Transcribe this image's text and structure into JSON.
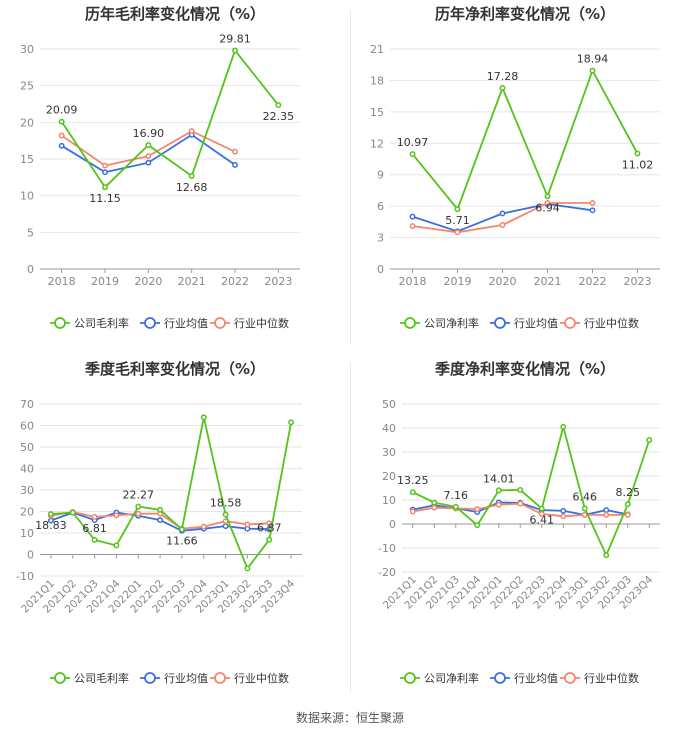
{
  "source_label": "数据来源：恒生聚源",
  "colors": {
    "company": "#52c41a",
    "avg": "#3a6fdc",
    "median": "#f4866b",
    "grid": "#e6e6e6",
    "axis_text": "#888888"
  },
  "chart_data": [
    {
      "id": "annual-gross",
      "type": "line",
      "title": "历年毛利率变化情况（%）",
      "categories": [
        "2018",
        "2019",
        "2020",
        "2021",
        "2022",
        "2023"
      ],
      "ylim": [
        0,
        30
      ],
      "yticks": [
        0,
        5,
        10,
        15,
        20,
        25,
        30
      ],
      "rotate_xlabels": false,
      "series": [
        {
          "name": "公司毛利率",
          "role": "company",
          "values": [
            20.09,
            11.15,
            16.9,
            12.68,
            29.81,
            22.35
          ],
          "labels": [
            "20.09",
            "11.15",
            "16.90",
            "12.68",
            "29.81",
            "22.35"
          ]
        },
        {
          "name": "行业均值",
          "role": "avg",
          "values": [
            16.8,
            13.2,
            14.5,
            18.3,
            14.2,
            null
          ]
        },
        {
          "name": "行业中位数",
          "role": "median",
          "values": [
            18.2,
            14.1,
            15.4,
            18.8,
            16.0,
            null
          ]
        }
      ]
    },
    {
      "id": "annual-net",
      "type": "line",
      "title": "历年净利率变化情况（%）",
      "categories": [
        "2018",
        "2019",
        "2020",
        "2021",
        "2022",
        "2023"
      ],
      "ylim": [
        0,
        21
      ],
      "yticks": [
        0,
        3,
        6,
        9,
        12,
        15,
        18,
        21
      ],
      "rotate_xlabels": false,
      "series": [
        {
          "name": "公司净利率",
          "role": "company",
          "values": [
            10.97,
            5.71,
            17.28,
            6.94,
            18.94,
            11.02
          ],
          "labels": [
            "10.97",
            "5.71",
            "17.28",
            "6.94",
            "18.94",
            "11.02"
          ]
        },
        {
          "name": "行业均值",
          "role": "avg",
          "values": [
            5.0,
            3.6,
            5.3,
            6.2,
            5.6,
            null
          ]
        },
        {
          "name": "行业中位数",
          "role": "median",
          "values": [
            4.1,
            3.5,
            4.2,
            6.3,
            6.3,
            null
          ]
        }
      ]
    },
    {
      "id": "quarterly-gross",
      "type": "line",
      "title": "季度毛利率变化情况（%）",
      "categories": [
        "2021Q1",
        "2021Q2",
        "2021Q3",
        "2021Q4",
        "2022Q1",
        "2022Q2",
        "2022Q3",
        "2022Q4",
        "2023Q1",
        "2023Q2",
        "2023Q3",
        "2023Q4"
      ],
      "ylim": [
        -10,
        70
      ],
      "yticks": [
        -10,
        0,
        10,
        20,
        30,
        40,
        50,
        60,
        70
      ],
      "rotate_xlabels": true,
      "series": [
        {
          "name": "公司毛利率",
          "role": "company",
          "values": [
            18.83,
            19.5,
            6.81,
            4.2,
            22.27,
            20.8,
            11.66,
            63.8,
            18.58,
            -6.5,
            6.87,
            61.5
          ],
          "labels": [
            "18.83",
            "",
            "6.81",
            "",
            "22.27",
            "",
            "11.66",
            "",
            "18.58",
            "",
            "6.87",
            ""
          ]
        },
        {
          "name": "行业均值",
          "role": "avg",
          "values": [
            15.8,
            19.5,
            16.0,
            19.5,
            18.0,
            16.0,
            11.0,
            12.0,
            13.2,
            12.0,
            11.8,
            null
          ]
        },
        {
          "name": "行业中位数",
          "role": "median",
          "values": [
            18.0,
            19.8,
            17.5,
            18.2,
            19.0,
            19.0,
            12.0,
            13.0,
            15.5,
            14.0,
            14.5,
            null
          ]
        }
      ]
    },
    {
      "id": "quarterly-net",
      "type": "line",
      "title": "季度净利率变化情况（%）",
      "categories": [
        "2021Q1",
        "2021Q2",
        "2021Q3",
        "2021Q4",
        "2022Q1",
        "2022Q2",
        "2022Q3",
        "2022Q4",
        "2023Q1",
        "2023Q2",
        "2023Q3",
        "2023Q4"
      ],
      "ylim": [
        -20,
        50
      ],
      "yticks": [
        -20,
        -10,
        0,
        10,
        20,
        30,
        40,
        50
      ],
      "rotate_xlabels": true,
      "series": [
        {
          "name": "公司净利率",
          "role": "company",
          "values": [
            13.25,
            8.9,
            7.16,
            -0.5,
            14.01,
            14.2,
            6.41,
            40.5,
            6.46,
            -13.0,
            8.25,
            35.0
          ],
          "labels": [
            "13.25",
            "",
            "7.16",
            "",
            "14.01",
            "",
            "6.41",
            "",
            "6.46",
            "",
            "8.25",
            ""
          ]
        },
        {
          "name": "行业均值",
          "role": "avg",
          "values": [
            6.0,
            7.8,
            6.5,
            5.0,
            9.0,
            8.8,
            5.8,
            5.5,
            3.8,
            5.8,
            4.0,
            null
          ]
        },
        {
          "name": "行业中位数",
          "role": "median",
          "values": [
            5.2,
            6.8,
            6.5,
            6.2,
            8.0,
            8.5,
            4.2,
            3.2,
            3.8,
            3.8,
            3.8,
            null
          ]
        }
      ]
    }
  ]
}
